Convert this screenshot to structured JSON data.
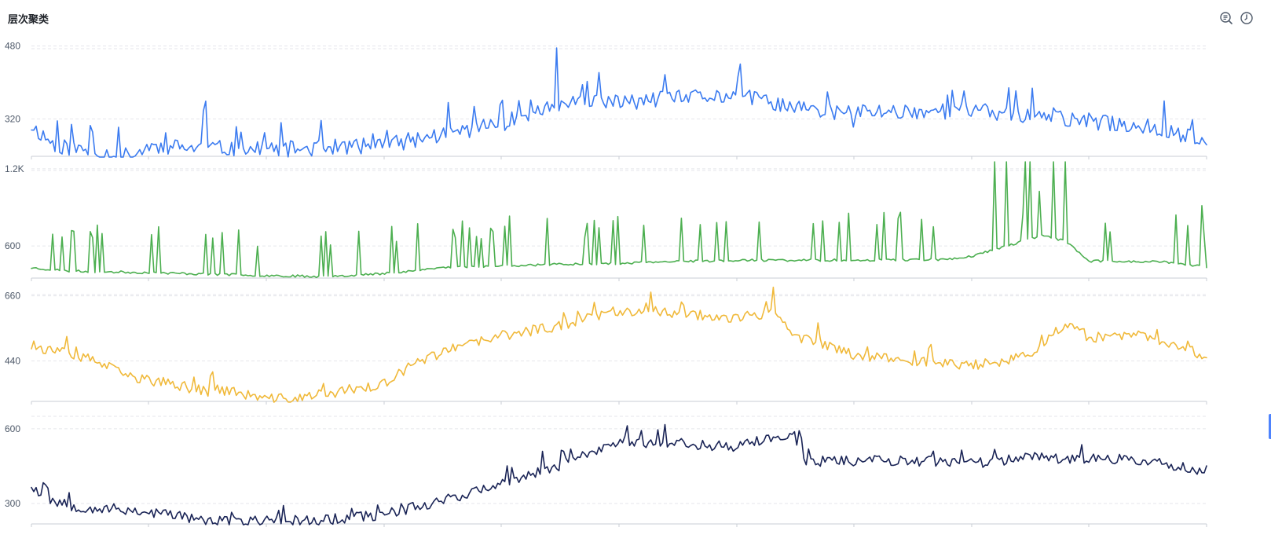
{
  "header": {
    "title": "层次聚类"
  },
  "toolbar": {
    "icons": [
      "list-search-icon",
      "history-clock-icon"
    ]
  },
  "colors": {
    "series": [
      "#3b7bf0",
      "#4caf50",
      "#f0b93a",
      "#1a2456"
    ]
  },
  "chart_data": [
    {
      "type": "line",
      "series": [
        {
          "color": "#3b7bf0",
          "points": 500,
          "seed": 11,
          "trend": [
            [
              0,
              305
            ],
            [
              0.02,
              262
            ],
            [
              0.06,
              245
            ],
            [
              0.085,
              238
            ],
            [
              0.1,
              260
            ],
            [
              0.2,
              252
            ],
            [
              0.3,
              262
            ],
            [
              0.4,
              310
            ],
            [
              0.45,
              352
            ],
            [
              0.5,
              356
            ],
            [
              0.55,
              365
            ],
            [
              0.6,
              372
            ],
            [
              0.67,
              335
            ],
            [
              0.8,
              338
            ],
            [
              0.9,
              315
            ],
            [
              0.96,
              300
            ],
            [
              1,
              268
            ]
          ],
          "noise": 18,
          "spikeProb": 0.07,
          "spikeAmp": 65,
          "events": [
            [
              0.146,
              60
            ],
            [
              0.147,
              30
            ],
            [
              0.148,
              25
            ],
            [
              0.148,
              70
            ],
            [
              0.445,
              -5
            ],
            [
              0.446,
              60
            ],
            [
              0.447,
              70
            ],
            [
              0.7,
              -35
            ]
          ]
        }
      ],
      "y_ticks": [
        320,
        480
      ],
      "ylim": [
        238,
        486
      ]
    },
    {
      "type": "line",
      "series": [
        {
          "color": "#4caf50",
          "points": 500,
          "seed": 23,
          "trend": [
            [
              0,
              430
            ],
            [
              0.03,
              405
            ],
            [
              0.1,
              392
            ],
            [
              0.2,
              370
            ],
            [
              0.25,
              362
            ],
            [
              0.3,
              385
            ],
            [
              0.35,
              432
            ],
            [
              0.45,
              458
            ],
            [
              0.5,
              465
            ],
            [
              0.55,
              478
            ],
            [
              0.6,
              488
            ],
            [
              0.7,
              490
            ],
            [
              0.78,
              495
            ],
            [
              0.8,
              520
            ],
            [
              0.86,
              680
            ],
            [
              0.88,
              640
            ],
            [
              0.9,
              482
            ],
            [
              0.96,
              478
            ],
            [
              1,
              435
            ]
          ],
          "noise": 9,
          "spikeProb": 0.12,
          "spikeAmp": 380,
          "events": [
            [
              0.82,
              840
            ],
            [
              0.83,
              950
            ],
            [
              0.845,
              800
            ],
            [
              0.85,
              820
            ],
            [
              0.87,
              750
            ],
            [
              0.88,
              700
            ],
            [
              0.996,
              470
            ]
          ]
        }
      ],
      "y_ticks": [
        600,
        "1.2K"
      ],
      "y_tick_values": [
        600,
        1200
      ],
      "ylim": [
        350,
        1230
      ]
    },
    {
      "type": "line",
      "series": [
        {
          "color": "#f0b93a",
          "points": 500,
          "seed": 37,
          "trend": [
            [
              0,
              490
            ],
            [
              0.055,
              440
            ],
            [
              0.08,
              390
            ],
            [
              0.15,
              338
            ],
            [
              0.16,
              345
            ],
            [
              0.2,
              310
            ],
            [
              0.23,
              315
            ],
            [
              0.29,
              355
            ],
            [
              0.3,
              360
            ],
            [
              0.33,
              440
            ],
            [
              0.35,
              470
            ],
            [
              0.4,
              525
            ],
            [
              0.45,
              560
            ],
            [
              0.5,
              612
            ],
            [
              0.55,
              602
            ],
            [
              0.6,
              585
            ],
            [
              0.63,
              600
            ],
            [
              0.65,
              525
            ],
            [
              0.7,
              462
            ],
            [
              0.75,
              440
            ],
            [
              0.8,
              425
            ],
            [
              0.85,
              455
            ],
            [
              0.88,
              570
            ],
            [
              0.9,
              520
            ],
            [
              0.95,
              525
            ],
            [
              1,
              455
            ]
          ],
          "noise": 18,
          "spikeProb": 0.05,
          "spikeAmp": 55,
          "events": [
            [
              0.632,
              80
            ],
            [
              0.67,
              65
            ]
          ]
        }
      ],
      "y_ticks": [
        440,
        660
      ],
      "ylim": [
        303,
        683
      ]
    },
    {
      "type": "line",
      "series": [
        {
          "color": "#1a2456",
          "points": 500,
          "seed": 53,
          "trend": [
            [
              0,
              375
            ],
            [
              0.01,
              325
            ],
            [
              0.04,
              285
            ],
            [
              0.08,
              275
            ],
            [
              0.13,
              250
            ],
            [
              0.15,
              226
            ],
            [
              0.25,
              235
            ],
            [
              0.3,
              255
            ],
            [
              0.35,
              315
            ],
            [
              0.4,
              375
            ],
            [
              0.45,
              455
            ],
            [
              0.5,
              550
            ],
            [
              0.6,
              530
            ],
            [
              0.63,
              560
            ],
            [
              0.65,
              575
            ],
            [
              0.65,
              550
            ],
            [
              0.66,
              470
            ],
            [
              0.72,
              475
            ],
            [
              0.8,
              462
            ],
            [
              0.85,
              485
            ],
            [
              0.9,
              482
            ],
            [
              0.95,
              470
            ],
            [
              1,
              430
            ]
          ],
          "noise": 22,
          "spikeProb": 0.06,
          "spikeAmp": 60,
          "events": [
            [
              0.013,
              60
            ],
            [
              0.015,
              55
            ],
            [
              0.77,
              -30
            ]
          ]
        }
      ],
      "y_ticks": [
        300,
        600
      ],
      "ylim": [
        218,
        672
      ]
    }
  ]
}
